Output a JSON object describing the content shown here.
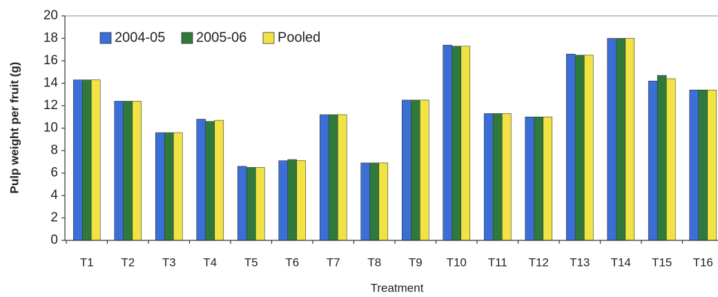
{
  "chart_data": {
    "type": "bar",
    "x_label": "Treatment",
    "y_label": "Pulp weight per fruit (g)",
    "categories": [
      "T1",
      "T2",
      "T3",
      "T4",
      "T5",
      "T6",
      "T7",
      "T8",
      "T9",
      "T10",
      "T11",
      "T12",
      "T13",
      "T14",
      "T15",
      "T16"
    ],
    "series": [
      {
        "name": "2004-05",
        "color": "#3b6fd6",
        "values": [
          14.3,
          12.4,
          9.6,
          10.8,
          6.6,
          7.1,
          11.2,
          6.9,
          12.5,
          17.4,
          11.3,
          11.0,
          16.6,
          18.0,
          14.2,
          13.4
        ]
      },
      {
        "name": "2005-06",
        "color": "#2f7a3a",
        "values": [
          14.3,
          12.4,
          9.6,
          10.6,
          6.5,
          7.2,
          11.2,
          6.9,
          12.5,
          17.3,
          11.3,
          11.0,
          16.5,
          18.0,
          14.7,
          13.4
        ]
      },
      {
        "name": "Pooled",
        "color": "#f2e345",
        "values": [
          14.3,
          12.4,
          9.6,
          10.7,
          6.5,
          7.1,
          11.2,
          6.9,
          12.5,
          17.3,
          11.3,
          11.0,
          16.5,
          18.0,
          14.4,
          13.4
        ]
      }
    ],
    "ylim": [
      0,
      20
    ],
    "yticks": [
      0,
      2,
      4,
      6,
      8,
      10,
      12,
      14,
      16,
      18,
      20
    ],
    "legend": "upper left"
  }
}
